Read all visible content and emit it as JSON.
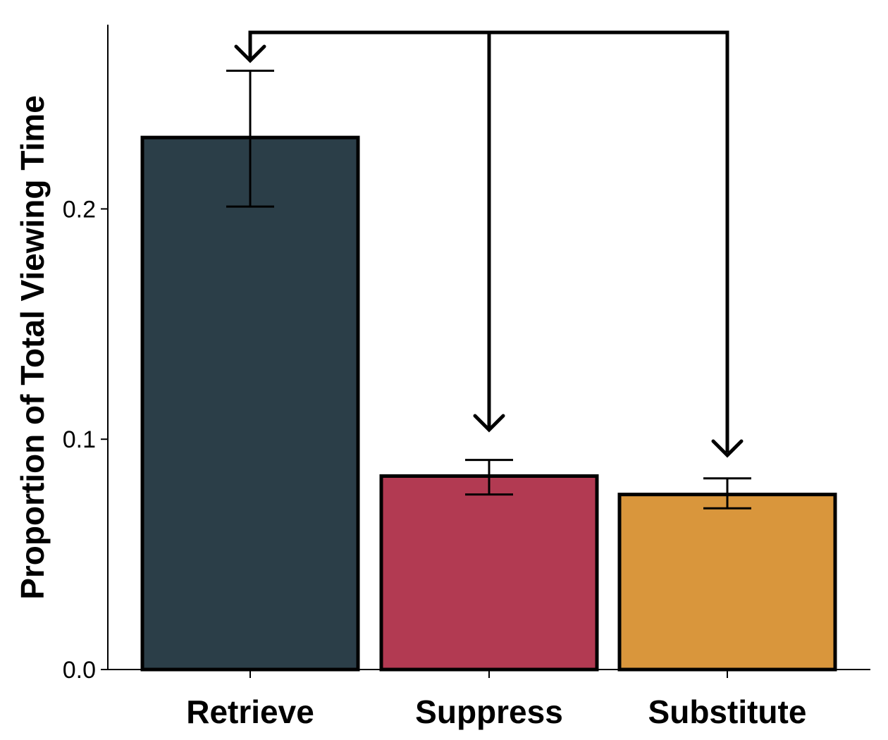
{
  "chart_data": {
    "type": "bar",
    "title": "",
    "xlabel": "",
    "ylabel": "Proportion of Total Viewing Time",
    "ylim": [
      0,
      0.28
    ],
    "yticks": [
      0.0,
      0.1,
      0.2
    ],
    "ytick_labels": [
      "0.0",
      "0.1",
      "0.2"
    ],
    "categories": [
      "Retrieve",
      "Suppress",
      "Substitute"
    ],
    "values": [
      0.231,
      0.084,
      0.076
    ],
    "error_low": [
      0.201,
      0.076,
      0.07
    ],
    "error_high": [
      0.26,
      0.091,
      0.083
    ],
    "colors": [
      "#2b3e48",
      "#b23a52",
      "#d9963c"
    ],
    "grid": false,
    "legend": "none",
    "annotations": [
      {
        "type": "comparison-arrow",
        "from": "Suppress",
        "to": "Retrieve",
        "also_to": "Suppress"
      },
      {
        "type": "comparison-arrow",
        "from": "Substitute",
        "to": "Retrieve",
        "also_to": "Substitute"
      }
    ]
  }
}
